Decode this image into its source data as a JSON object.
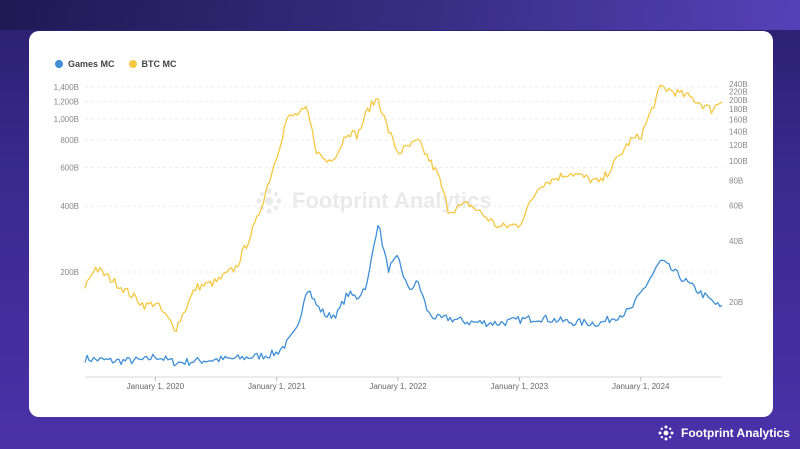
{
  "brand": {
    "name": "Footprint Analytics",
    "watermark": "Footprint Analytics"
  },
  "chart_data": {
    "type": "line",
    "legend_position": "top-left",
    "grid": true,
    "x_ticks": [
      "January 1, 2020",
      "January 1, 2021",
      "January 1, 2022",
      "January 1, 2023",
      "January 1, 2024"
    ],
    "left_axis": {
      "scale": "log",
      "ticks": [
        "1,400B",
        "1,200B",
        "1,000B",
        "800B",
        "600B",
        "400B",
        "200B"
      ],
      "tick_values": [
        1400,
        1200,
        1000,
        800,
        600,
        400,
        200
      ]
    },
    "right_axis": {
      "scale": "log",
      "ticks": [
        "240B",
        "220B",
        "200B",
        "180B",
        "160B",
        "140B",
        "120B",
        "100B",
        "80B",
        "60B",
        "40B",
        "20B"
      ],
      "tick_values": [
        240,
        220,
        200,
        180,
        160,
        140,
        120,
        100,
        80,
        60,
        40,
        20
      ]
    },
    "series": [
      {
        "name": "Games MC",
        "color": "#3f8fd6",
        "axis": "right",
        "x": [
          "2019-06",
          "2019-09",
          "2019-12",
          "2020-01",
          "2020-03",
          "2020-06",
          "2020-09",
          "2020-12",
          "2021-01",
          "2021-02",
          "2021-03",
          "2021-04",
          "2021-05",
          "2021-06",
          "2021-07",
          "2021-08",
          "2021-09",
          "2021-10",
          "2021-11",
          "2021-12",
          "2022-01",
          "2022-02",
          "2022-03",
          "2022-04",
          "2022-05",
          "2022-06",
          "2022-08",
          "2022-11",
          "2023-01",
          "2023-03",
          "2023-06",
          "2023-09",
          "2023-12",
          "2024-03",
          "2024-06",
          "2024-09"
        ],
        "values": [
          10.5,
          10.2,
          10.3,
          10.8,
          10.0,
          10.3,
          10.5,
          10.9,
          11.2,
          12.5,
          14.5,
          24,
          19,
          17,
          17.5,
          22,
          21,
          25,
          50,
          29,
          33,
          23,
          25,
          17.5,
          16.5,
          16.6,
          15.9,
          15.7,
          16.3,
          16.7,
          15.9,
          15.7,
          18.2,
          32,
          24,
          18.6
        ]
      },
      {
        "name": "BTC MC",
        "color": "#f5c842",
        "axis": "left",
        "x": [
          "2019-06",
          "2019-07",
          "2019-09",
          "2019-12",
          "2020-01",
          "2020-03",
          "2020-05",
          "2020-07",
          "2020-09",
          "2020-11",
          "2020-12",
          "2021-01",
          "2021-02",
          "2021-03",
          "2021-04",
          "2021-05",
          "2021-06",
          "2021-07",
          "2021-08",
          "2021-09",
          "2021-10",
          "2021-11",
          "2021-12",
          "2022-01",
          "2022-03",
          "2022-05",
          "2022-06",
          "2022-08",
          "2022-11",
          "2023-01",
          "2023-03",
          "2023-06",
          "2023-09",
          "2023-12",
          "2024-01",
          "2024-03",
          "2024-06",
          "2024-08",
          "2024-09"
        ],
        "values": [
          170,
          210,
          180,
          140,
          145,
          110,
          170,
          180,
          210,
          340,
          480,
          680,
          1000,
          1050,
          1100,
          700,
          640,
          700,
          880,
          840,
          1100,
          1250,
          900,
          700,
          790,
          550,
          380,
          410,
          320,
          330,
          500,
          570,
          510,
          800,
          830,
          1400,
          1250,
          1100,
          1220
        ]
      }
    ]
  }
}
